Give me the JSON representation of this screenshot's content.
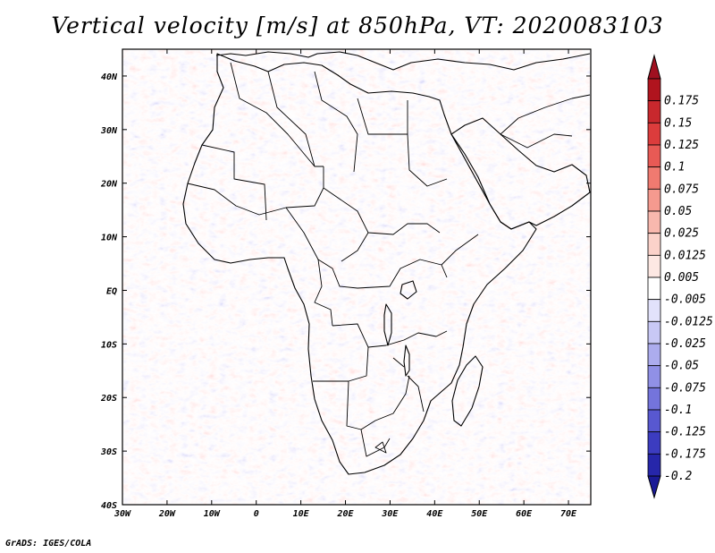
{
  "title": "Vertical velocity [m/s] at 850hPa, VT: 2020083103",
  "footer": "GrADS: IGES/COLA",
  "map": {
    "lon_range": [
      -30,
      75
    ],
    "lat_range": [
      -40,
      45
    ],
    "lon_ticks": [
      {
        "value": -30,
        "label": "30W"
      },
      {
        "value": -20,
        "label": "20W"
      },
      {
        "value": -10,
        "label": "10W"
      },
      {
        "value": 0,
        "label": "0"
      },
      {
        "value": 10,
        "label": "10E"
      },
      {
        "value": 20,
        "label": "20E"
      },
      {
        "value": 30,
        "label": "30E"
      },
      {
        "value": 40,
        "label": "40E"
      },
      {
        "value": 50,
        "label": "50E"
      },
      {
        "value": 60,
        "label": "60E"
      },
      {
        "value": 70,
        "label": "70E"
      }
    ],
    "lat_ticks": [
      {
        "value": 40,
        "label": "40N"
      },
      {
        "value": 30,
        "label": "30N"
      },
      {
        "value": 20,
        "label": "20N"
      },
      {
        "value": 10,
        "label": "10N"
      },
      {
        "value": 0,
        "label": "EQ"
      },
      {
        "value": -10,
        "label": "10S"
      },
      {
        "value": -20,
        "label": "20S"
      },
      {
        "value": -30,
        "label": "30S"
      },
      {
        "value": -40,
        "label": "40S"
      }
    ]
  },
  "colorbar": {
    "levels": [
      {
        "label": "0.175",
        "color": "#b0141e"
      },
      {
        "label": "0.15",
        "color": "#c8282d"
      },
      {
        "label": "0.125",
        "color": "#dc3c3c"
      },
      {
        "label": "0.1",
        "color": "#e85a55"
      },
      {
        "label": "0.075",
        "color": "#f07a70"
      },
      {
        "label": "0.05",
        "color": "#f59a8f"
      },
      {
        "label": "0.025",
        "color": "#f8b8ae"
      },
      {
        "label": "0.0125",
        "color": "#fbd2ca"
      },
      {
        "label": "0.005",
        "color": "#fde8e3"
      },
      {
        "label": "-0.005",
        "color": "#ffffff"
      },
      {
        "label": "-0.0125",
        "color": "#e2e2fb"
      },
      {
        "label": "-0.025",
        "color": "#c8c8f5"
      },
      {
        "label": "-0.05",
        "color": "#acacee"
      },
      {
        "label": "-0.075",
        "color": "#9090e6"
      },
      {
        "label": "-0.1",
        "color": "#7474dc"
      },
      {
        "label": "-0.125",
        "color": "#5858d0"
      },
      {
        "label": "-0.175",
        "color": "#3c3cc0"
      },
      {
        "label": "-0.2",
        "color": "#2626aa"
      }
    ],
    "over_color": "#a01020",
    "under_color": "#1a1a96"
  }
}
